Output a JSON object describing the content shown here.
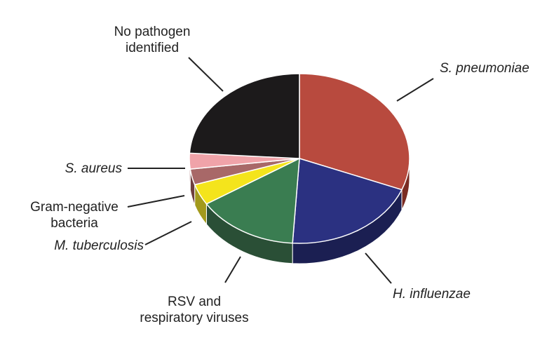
{
  "chart_data": {
    "type": "pie",
    "style": "3d-tilted",
    "slices": [
      {
        "label": [
          "S. pneumoniae"
        ],
        "italic": true,
        "value": 31,
        "color": "#b84a3e",
        "side": "#7a2b22"
      },
      {
        "label": [
          "H. influenzae"
        ],
        "italic": true,
        "value": 20,
        "color": "#2b3181",
        "side": "#1b1f52"
      },
      {
        "label": [
          "RSV and",
          "respiratory viruses"
        ],
        "italic": false,
        "value": 15,
        "color": "#3a7d51",
        "side": "#2a4f36"
      },
      {
        "label": [
          "M. tuberculosis"
        ],
        "italic": true,
        "value": 4,
        "color": "#f4e41c",
        "side": "#a39a1c"
      },
      {
        "label": [
          "Gram-negative",
          "bacteria"
        ],
        "italic": false,
        "value": 3,
        "color": "#a86868",
        "side": "#6d3e3e"
      },
      {
        "label": [
          "S. aureus"
        ],
        "italic": true,
        "value": 3,
        "color": "#f0a3a9",
        "side": "#a56a70"
      },
      {
        "label": [
          "No pathogen",
          "identified"
        ],
        "italic": false,
        "value": 24,
        "color": "#1c1a1b",
        "side": "#111011"
      }
    ]
  }
}
